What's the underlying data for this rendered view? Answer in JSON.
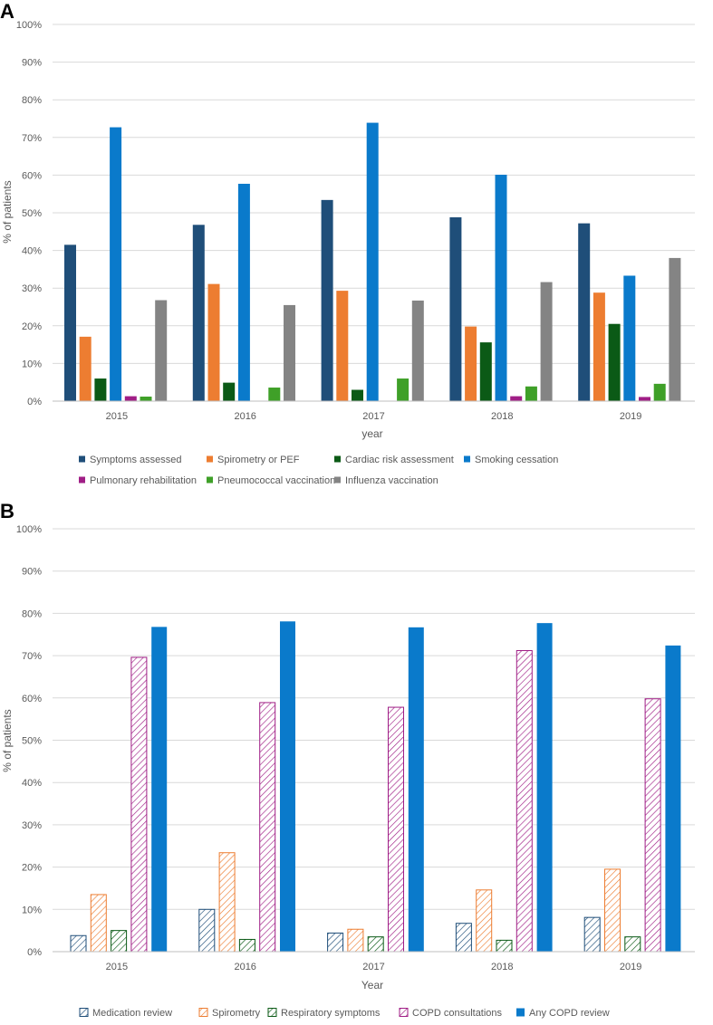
{
  "chart_data": [
    {
      "type": "bar",
      "panel_label": "A",
      "title": "",
      "xlabel": "year",
      "ylabel": "% of patients",
      "ylim": [
        0,
        100
      ],
      "yticks": [
        "0%",
        "10%",
        "20%",
        "30%",
        "40%",
        "50%",
        "60%",
        "70%",
        "80%",
        "90%",
        "100%"
      ],
      "grid": true,
      "legend_position": "bottom",
      "categories": [
        "2015",
        "2016",
        "2017",
        "2018",
        "2019"
      ],
      "series": [
        {
          "name": "Symptoms assessed",
          "color": "#1F4E79",
          "pattern": "solid",
          "values": [
            41.5,
            46.8,
            53.4,
            48.8,
            47.2
          ]
        },
        {
          "name": "Spirometry or PEF",
          "color": "#ED7D31",
          "pattern": "solid",
          "values": [
            17.1,
            31.1,
            29.3,
            19.8,
            28.8
          ]
        },
        {
          "name": "Cardiac risk assessment",
          "color": "#0B5A16",
          "pattern": "solid",
          "values": [
            6.0,
            4.9,
            3.0,
            15.6,
            20.5
          ]
        },
        {
          "name": "Smoking cessation",
          "color": "#0A7ACB",
          "pattern": "solid",
          "values": [
            72.7,
            57.7,
            73.9,
            60.1,
            33.3
          ]
        },
        {
          "name": "Pulmonary rehabilitation",
          "color": "#A01E86",
          "pattern": "solid",
          "values": [
            1.3,
            0,
            0,
            1.3,
            1.1
          ]
        },
        {
          "name": "Pneumococcal vaccination",
          "color": "#3FA028",
          "pattern": "solid",
          "values": [
            1.2,
            3.6,
            6.0,
            3.9,
            4.6
          ]
        },
        {
          "name": "Influenza vaccination",
          "color": "#848484",
          "pattern": "solid",
          "values": [
            26.8,
            25.5,
            26.7,
            31.6,
            38.0
          ]
        }
      ]
    },
    {
      "type": "bar",
      "panel_label": "B",
      "title": "",
      "xlabel": "Year",
      "ylabel": "% of patients",
      "ylim": [
        0,
        100
      ],
      "yticks": [
        "0%",
        "10%",
        "20%",
        "30%",
        "40%",
        "50%",
        "60%",
        "70%",
        "80%",
        "90%",
        "100%"
      ],
      "grid": true,
      "legend_position": "bottom",
      "categories": [
        "2015",
        "2016",
        "2017",
        "2018",
        "2019"
      ],
      "series": [
        {
          "name": "Medication review",
          "color": "#1F4E79",
          "pattern": "hatch",
          "values": [
            3.8,
            10.0,
            4.4,
            6.7,
            8.1
          ]
        },
        {
          "name": "Spirometry",
          "color": "#ED7D31",
          "pattern": "hatch",
          "values": [
            13.5,
            23.4,
            5.3,
            14.6,
            19.5
          ]
        },
        {
          "name": "Respiratory symptoms",
          "color": "#0B5A16",
          "pattern": "hatch",
          "values": [
            5.0,
            2.9,
            3.5,
            2.7,
            3.5
          ]
        },
        {
          "name": "COPD consultations",
          "color": "#A01E86",
          "pattern": "hatch",
          "values": [
            69.6,
            58.9,
            57.8,
            71.2,
            59.8
          ]
        },
        {
          "name": "Any COPD review",
          "color": "#0A7ACB",
          "pattern": "solid",
          "values": [
            76.8,
            78.1,
            76.7,
            77.7,
            72.4
          ]
        }
      ]
    }
  ]
}
